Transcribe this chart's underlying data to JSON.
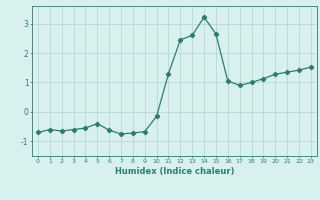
{
  "x": [
    0,
    1,
    2,
    3,
    4,
    5,
    6,
    7,
    8,
    9,
    10,
    11,
    12,
    13,
    14,
    15,
    16,
    17,
    18,
    19,
    20,
    21,
    22,
    23
  ],
  "y": [
    -0.7,
    -0.6,
    -0.65,
    -0.6,
    -0.55,
    -0.4,
    -0.62,
    -0.75,
    -0.72,
    -0.67,
    -0.15,
    1.3,
    2.45,
    2.6,
    3.22,
    2.65,
    1.05,
    0.9,
    1.0,
    1.13,
    1.28,
    1.35,
    1.42,
    1.52
  ],
  "line_color": "#2d7d6e",
  "marker": "D",
  "marker_size": 2.2,
  "bg_color": "#d8f0ee",
  "grid_color": "#b8d8d4",
  "xlabel": "Humidex (Indice chaleur)",
  "ylim": [
    -1.5,
    3.6
  ],
  "yticks": [
    -1,
    0,
    1,
    2,
    3
  ],
  "xlim": [
    -0.5,
    23.5
  ],
  "xticks": [
    0,
    1,
    2,
    3,
    4,
    5,
    6,
    7,
    8,
    9,
    10,
    11,
    12,
    13,
    14,
    15,
    16,
    17,
    18,
    19,
    20,
    21,
    22,
    23
  ]
}
